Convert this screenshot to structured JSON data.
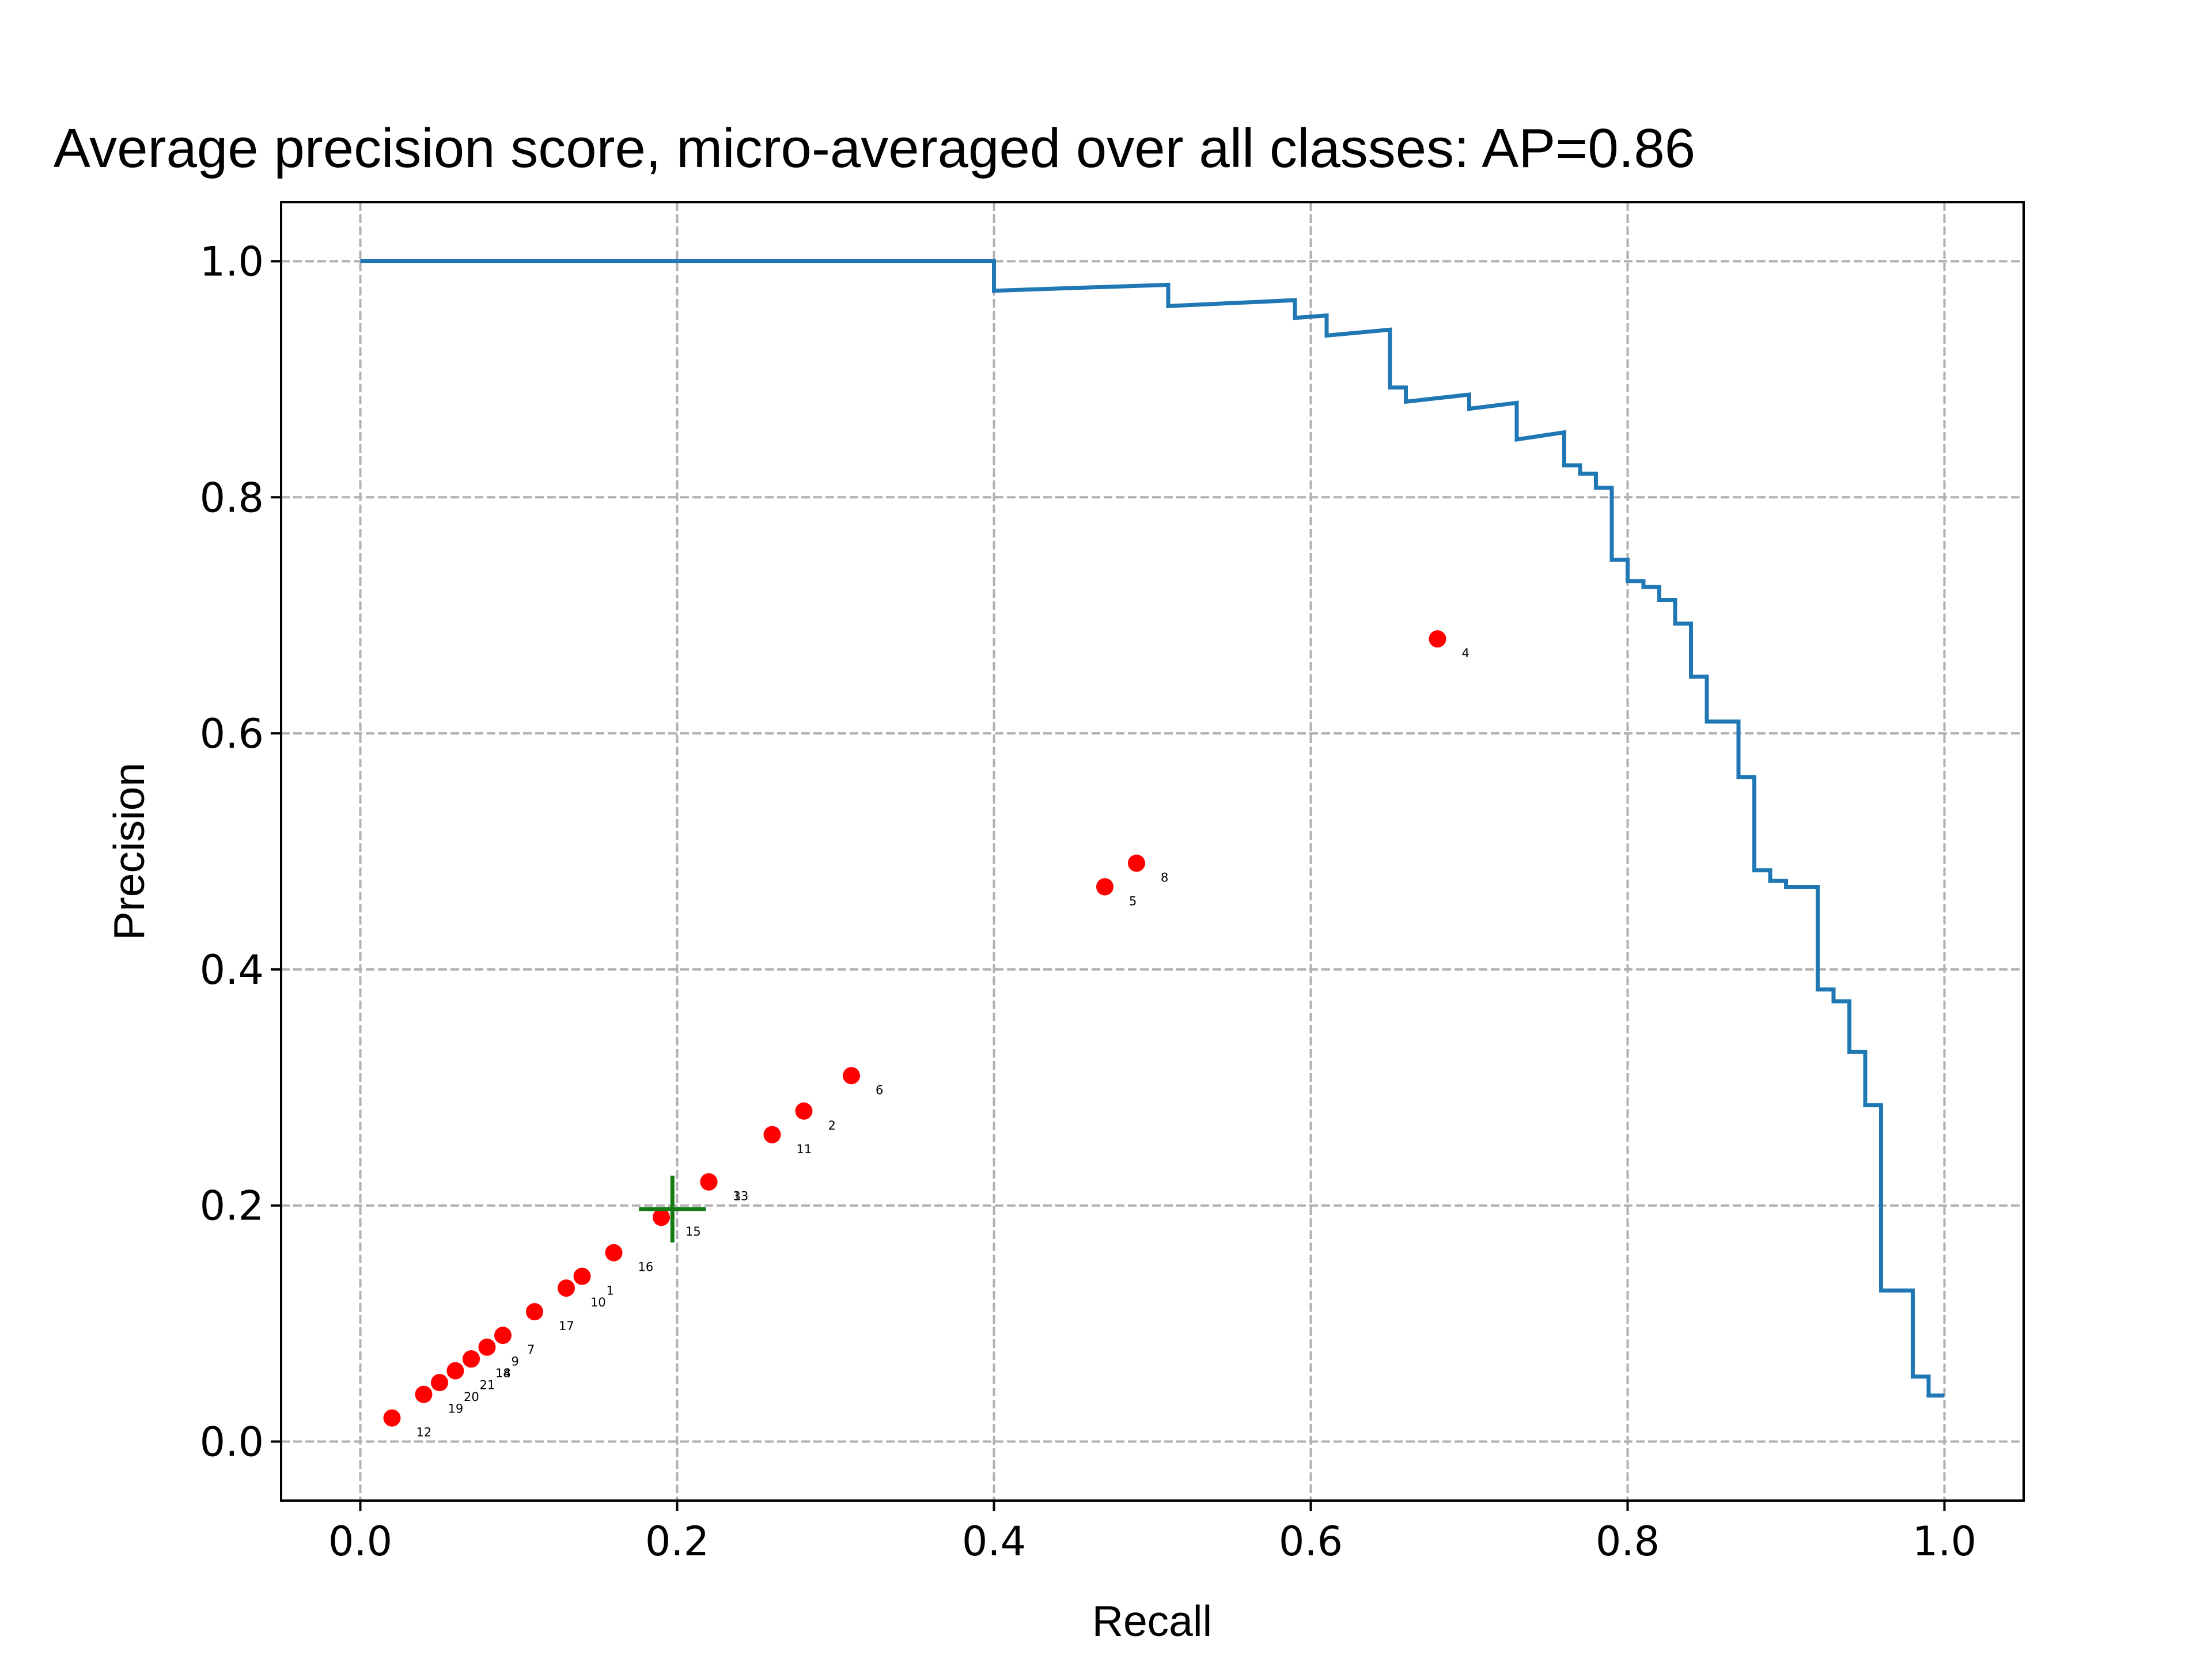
{
  "chart_data": {
    "type": "line",
    "title": "Average precision score, micro-averaged over all classes: AP=0.86",
    "xlabel": "Recall",
    "ylabel": "Precision",
    "xlim": [
      -0.05,
      1.05
    ],
    "ylim": [
      -0.05,
      1.05
    ],
    "xticks": [
      "0.0",
      "0.2",
      "0.4",
      "0.6",
      "0.8",
      "1.0"
    ],
    "yticks": [
      "0.0",
      "0.2",
      "0.4",
      "0.6",
      "0.8",
      "1.0"
    ],
    "xtick_values": [
      0,
      0.2,
      0.4,
      0.6,
      0.8,
      1.0
    ],
    "ytick_values": [
      0,
      0.2,
      0.4,
      0.6,
      0.8,
      1.0
    ],
    "grid": true,
    "series": [
      {
        "type": "step",
        "color": "#1f77b4",
        "x": [
          0.0,
          0.4,
          0.4,
          0.51,
          0.51,
          0.59,
          0.59,
          0.61,
          0.61,
          0.65,
          0.65,
          0.66,
          0.66,
          0.7,
          0.7,
          0.73,
          0.73,
          0.76,
          0.76,
          0.77,
          0.77,
          0.78,
          0.78,
          0.79,
          0.79,
          0.8,
          0.8,
          0.81,
          0.81,
          0.82,
          0.82,
          0.83,
          0.83,
          0.84,
          0.84,
          0.85,
          0.85,
          0.87,
          0.87,
          0.88,
          0.88,
          0.89,
          0.89,
          0.9,
          0.9,
          0.92,
          0.92,
          0.93,
          0.93,
          0.94,
          0.94,
          0.95,
          0.95,
          0.96,
          0.96,
          0.98,
          0.98,
          0.99,
          0.99,
          1.0
        ],
        "y": [
          1.0,
          1.0,
          0.975,
          0.98,
          0.962,
          0.967,
          0.952,
          0.954,
          0.937,
          0.942,
          0.893,
          0.893,
          0.881,
          0.887,
          0.875,
          0.88,
          0.849,
          0.855,
          0.827,
          0.827,
          0.82,
          0.82,
          0.808,
          0.808,
          0.747,
          0.747,
          0.729,
          0.729,
          0.724,
          0.724,
          0.713,
          0.713,
          0.693,
          0.693,
          0.648,
          0.648,
          0.61,
          0.61,
          0.563,
          0.563,
          0.484,
          0.484,
          0.475,
          0.475,
          0.47,
          0.47,
          0.383,
          0.383,
          0.373,
          0.373,
          0.33,
          0.33,
          0.285,
          0.285,
          0.128,
          0.128,
          0.055,
          0.055,
          0.039,
          0.039
        ]
      },
      {
        "type": "scatter",
        "color": "#ff0000",
        "points": [
          {
            "x": 0.14,
            "y": 0.14,
            "label": "1"
          },
          {
            "x": 0.28,
            "y": 0.28,
            "label": "2"
          },
          {
            "x": 0.22,
            "y": 0.22,
            "label": "3"
          },
          {
            "x": 0.68,
            "y": 0.68,
            "label": "4"
          },
          {
            "x": 0.47,
            "y": 0.47,
            "label": "5"
          },
          {
            "x": 0.31,
            "y": 0.31,
            "label": "6"
          },
          {
            "x": 0.09,
            "y": 0.09,
            "label": "7"
          },
          {
            "x": 0.49,
            "y": 0.49,
            "label": "8"
          },
          {
            "x": 0.08,
            "y": 0.08,
            "label": "9"
          },
          {
            "x": 0.13,
            "y": 0.13,
            "label": "10"
          },
          {
            "x": 0.26,
            "y": 0.26,
            "label": "11"
          },
          {
            "x": 0.02,
            "y": 0.02,
            "label": "12"
          },
          {
            "x": 0.22,
            "y": 0.22,
            "label": "13"
          },
          {
            "x": 0.07,
            "y": 0.07,
            "label": "14"
          },
          {
            "x": 0.19,
            "y": 0.19,
            "label": "15"
          },
          {
            "x": 0.16,
            "y": 0.16,
            "label": "16"
          },
          {
            "x": 0.11,
            "y": 0.11,
            "label": "17"
          },
          {
            "x": 0.07,
            "y": 0.07,
            "label": "18"
          },
          {
            "x": 0.04,
            "y": 0.04,
            "label": "19"
          },
          {
            "x": 0.05,
            "y": 0.05,
            "label": "20"
          },
          {
            "x": 0.06,
            "y": 0.06,
            "label": "21"
          }
        ]
      },
      {
        "type": "marker",
        "marker": "plus",
        "color": "#147a14",
        "x": 0.197,
        "y": 0.197
      }
    ]
  }
}
